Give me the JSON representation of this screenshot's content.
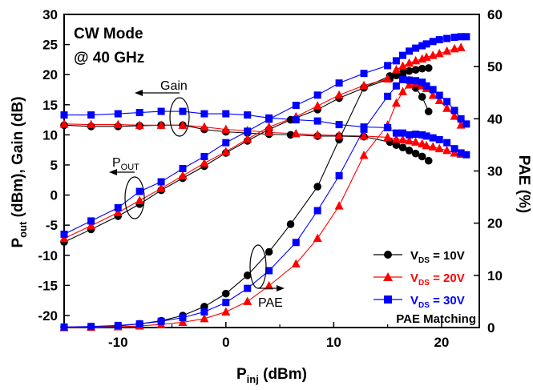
{
  "chart_data": {
    "type": "line",
    "title": "",
    "condition_text": [
      "CW Mode",
      "@ 40 GHz"
    ],
    "xlabel": {
      "main": "P",
      "sub": "inj",
      "rest": " (dBm)"
    },
    "ylabel_left": {
      "main": "P",
      "sub": "out",
      "rest": " (dBm), Gain (dB)"
    },
    "ylabel_right": "PAE (%)",
    "xlim": [
      -15,
      23.5
    ],
    "ylim_left": [
      -22,
      30
    ],
    "ylim_right": [
      0,
      60
    ],
    "xticks": [
      -10,
      0,
      10,
      20
    ],
    "xtick_labels": [
      "-10",
      "0",
      "10",
      "20"
    ],
    "yticks_left": [
      -20,
      -15,
      -10,
      -5,
      0,
      5,
      10,
      15,
      20,
      25,
      30
    ],
    "yticks_left_labels": [
      "-20",
      "-15",
      "-10",
      "-5",
      "0",
      "5",
      "10",
      "15",
      "20",
      "25",
      "30"
    ],
    "yticks_right": [
      0,
      10,
      20,
      30,
      40,
      50,
      60
    ],
    "yticks_right_labels": [
      "0",
      "10",
      "20",
      "30",
      "40",
      "50",
      "60"
    ],
    "grid": false,
    "legend_position": "bottom-right",
    "annotations": {
      "gain": "Gain",
      "pout": {
        "main": "P",
        "sub": "OUT"
      },
      "pae": "PAE",
      "matching": "PAE Matching"
    },
    "series": [
      {
        "name": "VDS = 10V",
        "legend": {
          "main": "V",
          "sub": "DS",
          "rest": " = 10V"
        },
        "color": "#000000",
        "marker": "circle",
        "x": [
          -15,
          -12.5,
          -10,
          -8,
          -6,
          -4,
          -2,
          0,
          2,
          4,
          6,
          8.5,
          10.5,
          12.8,
          15.2,
          15.8,
          16.4,
          17,
          17.6,
          18.2,
          18.8
        ],
        "pout": [
          -7.8,
          -5.7,
          -3.5,
          -1.5,
          0.8,
          2.8,
          4.8,
          7,
          9,
          10.9,
          12.5,
          14.2,
          16.1,
          17.8,
          19.3,
          19.9,
          20.3,
          20.6,
          20.8,
          21,
          21.1
        ],
        "gain": [
          11.6,
          11.4,
          11.4,
          11.5,
          11.6,
          11.6,
          10.9,
          10.5,
          10.3,
          10.1,
          10,
          9.8,
          9.8,
          9.7,
          8.8,
          8.3,
          7.9,
          7.4,
          6.9,
          6.4,
          5.7
        ],
        "pae": [
          0.05,
          0.15,
          0.3,
          0.7,
          1.3,
          2.3,
          4,
          6.5,
          10,
          14.5,
          19.8,
          27,
          36,
          46,
          48.2,
          48.3,
          48.2,
          47.4,
          45.9,
          44.2,
          41.4
        ]
      },
      {
        "name": "VDS = 20V",
        "legend": {
          "main": "V",
          "sub": "DS",
          "rest": " = 20V"
        },
        "color": "#ff0000",
        "marker": "triangle",
        "x": [
          -15,
          -12.5,
          -10,
          -8,
          -6,
          -4,
          -2,
          0,
          2,
          4,
          6.5,
          8.5,
          10.5,
          12.8,
          15,
          15.8,
          16.4,
          17,
          17.6,
          18.2,
          18.6,
          19.2,
          19.8,
          20.5,
          21.2,
          21.8
        ],
        "pout": [
          -7.2,
          -5.1,
          -2.9,
          -0.9,
          1.1,
          3.2,
          5.3,
          7.2,
          9.3,
          11.3,
          13,
          14.8,
          16.6,
          18.2,
          19.3,
          20.8,
          21.4,
          21.9,
          22.3,
          22.6,
          22.9,
          23.2,
          23.5,
          23.9,
          24.3,
          24.5
        ],
        "gain": [
          11.8,
          11.7,
          11.7,
          11.6,
          11.6,
          11.6,
          11.3,
          10.9,
          10.7,
          10.4,
          10.2,
          10,
          9.9,
          9.8,
          9.6,
          9.3,
          9.2,
          9,
          8.8,
          8.5,
          8.2,
          8,
          7.7,
          7.4,
          7,
          6.8
        ],
        "pae": [
          0,
          0.05,
          0.15,
          0.3,
          0.6,
          1,
          1.7,
          3,
          5,
          8,
          12.2,
          17.1,
          23.3,
          33,
          38.8,
          43,
          45.2,
          46.5,
          46.8,
          46.3,
          45.8,
          44.5,
          43.5,
          42,
          40.5,
          38.8
        ]
      },
      {
        "name": "VDS = 30V",
        "legend": {
          "main": "V",
          "sub": "DS",
          "rest": " = 30V"
        },
        "color": "#0000ff",
        "marker": "square",
        "x": [
          -15,
          -12.5,
          -10,
          -8,
          -6,
          -4,
          -2,
          0,
          2,
          4,
          6.5,
          8.5,
          10.5,
          12.8,
          15,
          15.8,
          16.4,
          17,
          17.6,
          18.2,
          18.6,
          19.2,
          19.8,
          20.5,
          21.2,
          21.8,
          22.3
        ],
        "pout": [
          -6.5,
          -4.3,
          -2.1,
          0.6,
          2.2,
          4.4,
          6.4,
          8.7,
          10.6,
          12.6,
          14.9,
          16.6,
          18.6,
          20.2,
          21.5,
          22.3,
          23.2,
          23.9,
          24.4,
          24.8,
          25.1,
          25.5,
          25.8,
          26,
          26.2,
          26.3,
          26.3
        ],
        "gain": [
          13.3,
          13.3,
          13.5,
          13.7,
          13.9,
          13.9,
          13.5,
          13.5,
          13.3,
          12.8,
          12.5,
          12.3,
          11.7,
          11.3,
          11.2,
          10.3,
          10.3,
          10,
          10.1,
          10,
          9.8,
          9.5,
          9.2,
          8.7,
          7.7,
          7,
          6.7
        ],
        "pae": [
          0.1,
          0.2,
          0.4,
          0.7,
          1.2,
          1.9,
          3,
          4.8,
          7.5,
          10.9,
          16.3,
          22.4,
          29.1,
          38,
          44.3,
          46.3,
          47.5,
          47.4,
          47.3,
          47,
          46.3,
          45.6,
          44.5,
          43.3,
          41.6,
          40,
          39
        ]
      }
    ]
  }
}
